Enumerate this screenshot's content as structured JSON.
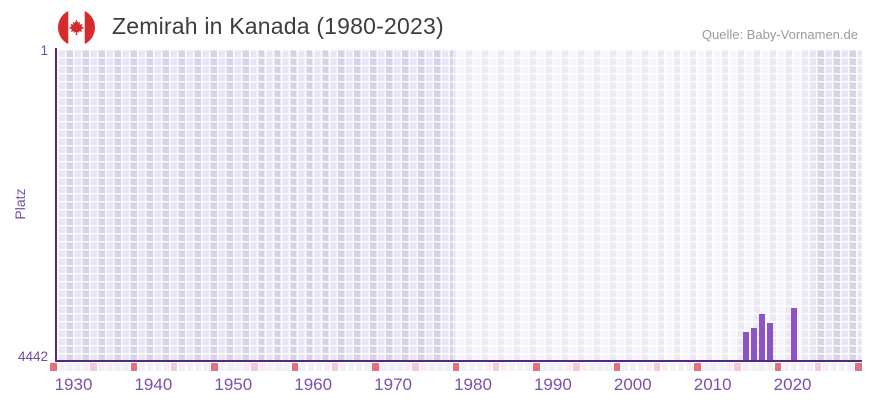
{
  "header": {
    "title": "Zemirah in Kanada (1980-2023)",
    "source": "Quelle: Baby-Vornamen.de",
    "flag_icon": "canada-flag-icon"
  },
  "chart_data": {
    "type": "bar",
    "title": "Zemirah in Kanada (1980-2023)",
    "xlabel": "",
    "ylabel": "Platz",
    "y_axis": {
      "top_label": "1",
      "bottom_label": "4442",
      "min": 1,
      "max": 4442,
      "inverted": true,
      "grid": true
    },
    "x_axis": {
      "tick_labels": [
        "1930",
        "1940",
        "1950",
        "1960",
        "1970",
        "1980",
        "1990",
        "2000",
        "2010",
        "2020"
      ],
      "tick_years": [
        1930,
        1940,
        1950,
        1960,
        1970,
        1980,
        1990,
        2000,
        2010,
        2020
      ],
      "range_years": [
        1928,
        2028
      ]
    },
    "series": [
      {
        "name": "Platz",
        "points": [
          {
            "year": 2014,
            "rank": 4045
          },
          {
            "year": 2015,
            "rank": 3980
          },
          {
            "year": 2016,
            "rank": 3785
          },
          {
            "year": 2017,
            "rank": 3910
          },
          {
            "year": 2020,
            "rank": 3705
          }
        ]
      }
    ],
    "highlight_band_years": {
      "from": 1978,
      "to": 2022
    },
    "legend": null
  },
  "colors": {
    "bar": "#8b55c6",
    "axis_line": "#4e2a84",
    "tick_label": "#7a52ab",
    "title_text": "#3d3d3d",
    "source_text": "#9b9b9b",
    "grid_cell_dark_band": "#dfdaed",
    "grid_cell_light_band": "#f4f1fb",
    "strip_dark_red": "#e0737f",
    "strip_medium_pink": "#f3c9d9",
    "strip_pale_pink": "#f6edf5",
    "strip_pale_lavender": "#f4f0fa",
    "flag_red": "#d52b2e"
  }
}
